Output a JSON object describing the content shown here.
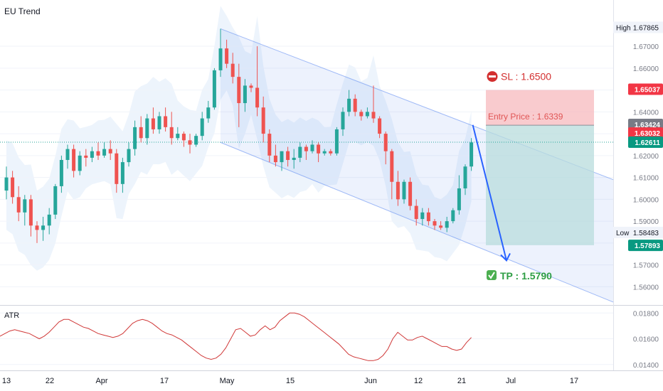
{
  "title": "EU Trend",
  "atr_label": "ATR",
  "annotations": {
    "sl": "SL : 1.6500",
    "entry": "Entry Price : 1.6339",
    "tp": "TP : 1.5790",
    "high_label": "High",
    "low_label": "Low"
  },
  "colors": {
    "up": "#26a69a",
    "down": "#ef5350",
    "channel": "#4a7cf0",
    "stop": "#f7b9bd",
    "target": "#b8dcdc",
    "atr_line": "#d03838"
  },
  "chart_data": [
    {
      "type": "candlestick",
      "title": "EU Trend",
      "x_ticks": [
        "13",
        "22",
        "Apr",
        "17",
        "May",
        "15",
        "Jun",
        "12",
        "21",
        "Jul",
        "17"
      ],
      "ylim": [
        1.552,
        1.684
      ],
      "y_ticks": [
        1.67,
        1.66,
        1.65,
        1.64,
        1.63,
        1.62,
        1.61,
        1.6,
        1.59,
        1.58,
        1.57,
        1.56
      ],
      "ohlc": [
        [
          1.604,
          1.615,
          1.6,
          1.61
        ],
        [
          1.61,
          1.613,
          1.598,
          1.601
        ],
        [
          1.601,
          1.606,
          1.59,
          1.594
        ],
        [
          1.594,
          1.602,
          1.588,
          1.6
        ],
        [
          1.6,
          1.602,
          1.583,
          1.588
        ],
        [
          1.588,
          1.59,
          1.58,
          1.586
        ],
        [
          1.586,
          1.592,
          1.581,
          1.588
        ],
        [
          1.588,
          1.596,
          1.584,
          1.593
        ],
        [
          1.593,
          1.607,
          1.591,
          1.606
        ],
        [
          1.606,
          1.62,
          1.603,
          1.618
        ],
        [
          1.618,
          1.625,
          1.614,
          1.623
        ],
        [
          1.623,
          1.625,
          1.61,
          1.613
        ],
        [
          1.613,
          1.622,
          1.611,
          1.62
        ],
        [
          1.62,
          1.623,
          1.615,
          1.619
        ],
        [
          1.619,
          1.624,
          1.617,
          1.622
        ],
        [
          1.622,
          1.626,
          1.618,
          1.62
        ],
        [
          1.62,
          1.626,
          1.619,
          1.623
        ],
        [
          1.623,
          1.627,
          1.618,
          1.621
        ],
        [
          1.621,
          1.623,
          1.603,
          1.607
        ],
        [
          1.607,
          1.619,
          1.603,
          1.617
        ],
        [
          1.617,
          1.626,
          1.615,
          1.623
        ],
        [
          1.623,
          1.636,
          1.62,
          1.633
        ],
        [
          1.633,
          1.638,
          1.626,
          1.628
        ],
        [
          1.628,
          1.639,
          1.625,
          1.637
        ],
        [
          1.637,
          1.642,
          1.63,
          1.632
        ],
        [
          1.632,
          1.64,
          1.63,
          1.638
        ],
        [
          1.638,
          1.642,
          1.631,
          1.633
        ],
        [
          1.633,
          1.64,
          1.625,
          1.628
        ],
        [
          1.628,
          1.633,
          1.627,
          1.63
        ],
        [
          1.63,
          1.631,
          1.624,
          1.627
        ],
        [
          1.627,
          1.63,
          1.621,
          1.625
        ],
        [
          1.625,
          1.63,
          1.624,
          1.629
        ],
        [
          1.629,
          1.64,
          1.627,
          1.637
        ],
        [
          1.637,
          1.645,
          1.635,
          1.642
        ],
        [
          1.642,
          1.66,
          1.641,
          1.659
        ],
        [
          1.659,
          1.678,
          1.656,
          1.669
        ],
        [
          1.669,
          1.673,
          1.66,
          1.662
        ],
        [
          1.662,
          1.667,
          1.653,
          1.656
        ],
        [
          1.656,
          1.662,
          1.633,
          1.644
        ],
        [
          1.644,
          1.655,
          1.64,
          1.652
        ],
        [
          1.652,
          1.653,
          1.649,
          1.651
        ],
        [
          1.651,
          1.67,
          1.638,
          1.642
        ],
        [
          1.642,
          1.647,
          1.626,
          1.63
        ],
        [
          1.63,
          1.632,
          1.617,
          1.62
        ],
        [
          1.62,
          1.625,
          1.615,
          1.617
        ],
        [
          1.617,
          1.622,
          1.613,
          1.622
        ],
        [
          1.622,
          1.624,
          1.615,
          1.618
        ],
        [
          1.618,
          1.623,
          1.614,
          1.619
        ],
        [
          1.619,
          1.626,
          1.617,
          1.624
        ],
        [
          1.624,
          1.625,
          1.618,
          1.622
        ],
        [
          1.622,
          1.627,
          1.621,
          1.625
        ],
        [
          1.625,
          1.626,
          1.617,
          1.621
        ],
        [
          1.621,
          1.623,
          1.62,
          1.622
        ],
        [
          1.622,
          1.623,
          1.62,
          1.621
        ],
        [
          1.621,
          1.633,
          1.62,
          1.632
        ],
        [
          1.632,
          1.642,
          1.629,
          1.64
        ],
        [
          1.64,
          1.65,
          1.638,
          1.646
        ],
        [
          1.646,
          1.648,
          1.638,
          1.64
        ],
        [
          1.64,
          1.641,
          1.636,
          1.638
        ],
        [
          1.638,
          1.642,
          1.637,
          1.64
        ],
        [
          1.64,
          1.652,
          1.635,
          1.637
        ],
        [
          1.637,
          1.638,
          1.628,
          1.63
        ],
        [
          1.63,
          1.631,
          1.616,
          1.622
        ],
        [
          1.622,
          1.623,
          1.6,
          1.608
        ],
        [
          1.608,
          1.613,
          1.597,
          1.6
        ],
        [
          1.6,
          1.609,
          1.598,
          1.608
        ],
        [
          1.608,
          1.61,
          1.595,
          1.597
        ],
        [
          1.597,
          1.6,
          1.588,
          1.591
        ],
        [
          1.591,
          1.596,
          1.588,
          1.594
        ],
        [
          1.594,
          1.596,
          1.588,
          1.59
        ],
        [
          1.59,
          1.591,
          1.586,
          1.588
        ],
        [
          1.588,
          1.59,
          1.586,
          1.587
        ],
        [
          1.587,
          1.592,
          1.585,
          1.59
        ],
        [
          1.59,
          1.596,
          1.589,
          1.595
        ],
        [
          1.595,
          1.611,
          1.593,
          1.605
        ],
        [
          1.605,
          1.616,
          1.602,
          1.615
        ],
        [
          1.615,
          1.628,
          1.613,
          1.626
        ]
      ],
      "channel": {
        "upper": [
          1.678,
          1.609
        ],
        "lower": [
          1.626,
          1.553
        ],
        "from_candle": 35
      },
      "levels": {
        "sl": 1.65,
        "entry": 1.6339,
        "tp": 1.579,
        "current": 1.62611
      },
      "price_labels": [
        {
          "text": "1.65037",
          "value": 1.65037,
          "style": "red"
        },
        {
          "text": "1.63424",
          "value": 1.63424,
          "style": "gray"
        },
        {
          "text": "1.63032",
          "value": 1.63032,
          "style": "red"
        },
        {
          "text": "1.62611",
          "value": 1.62611,
          "style": "green"
        },
        {
          "text": "1.57893",
          "value": 1.57893,
          "style": "green"
        }
      ],
      "high": {
        "label": "High",
        "value": 1.67865,
        "text": "1.67865"
      },
      "low": {
        "label": "Low",
        "value": 1.58483,
        "text": "1.58483"
      }
    },
    {
      "type": "line",
      "title": "ATR",
      "ylim": [
        0.0136,
        0.0184
      ],
      "y_ticks": [
        0.018,
        0.016,
        0.014
      ],
      "values": [
        0.0162,
        0.0164,
        0.0166,
        0.0167,
        0.0166,
        0.0165,
        0.0164,
        0.0162,
        0.016,
        0.0162,
        0.0165,
        0.0169,
        0.0173,
        0.0175,
        0.0175,
        0.0173,
        0.0171,
        0.0169,
        0.0168,
        0.0166,
        0.0164,
        0.0163,
        0.0162,
        0.0161,
        0.0162,
        0.0164,
        0.0168,
        0.0172,
        0.0174,
        0.0175,
        0.0174,
        0.0172,
        0.0169,
        0.0166,
        0.0164,
        0.0163,
        0.0161,
        0.0159,
        0.0156,
        0.0153,
        0.015,
        0.0147,
        0.0145,
        0.0144,
        0.0145,
        0.0148,
        0.0153,
        0.016,
        0.0167,
        0.0168,
        0.0165,
        0.0162,
        0.0163,
        0.0167,
        0.017,
        0.0167,
        0.0169,
        0.0174,
        0.0177,
        0.018,
        0.018,
        0.0179,
        0.0177,
        0.0174,
        0.0171,
        0.0168,
        0.0165,
        0.0162,
        0.0159,
        0.0156,
        0.0152,
        0.0148,
        0.0146,
        0.0145,
        0.0144,
        0.0143,
        0.0143,
        0.0144,
        0.0147,
        0.0152,
        0.016,
        0.0165,
        0.0162,
        0.0159,
        0.0159,
        0.0161,
        0.0162,
        0.016,
        0.0158,
        0.0156,
        0.0154,
        0.0154,
        0.0152,
        0.0151,
        0.0152,
        0.0157,
        0.0161
      ]
    }
  ]
}
